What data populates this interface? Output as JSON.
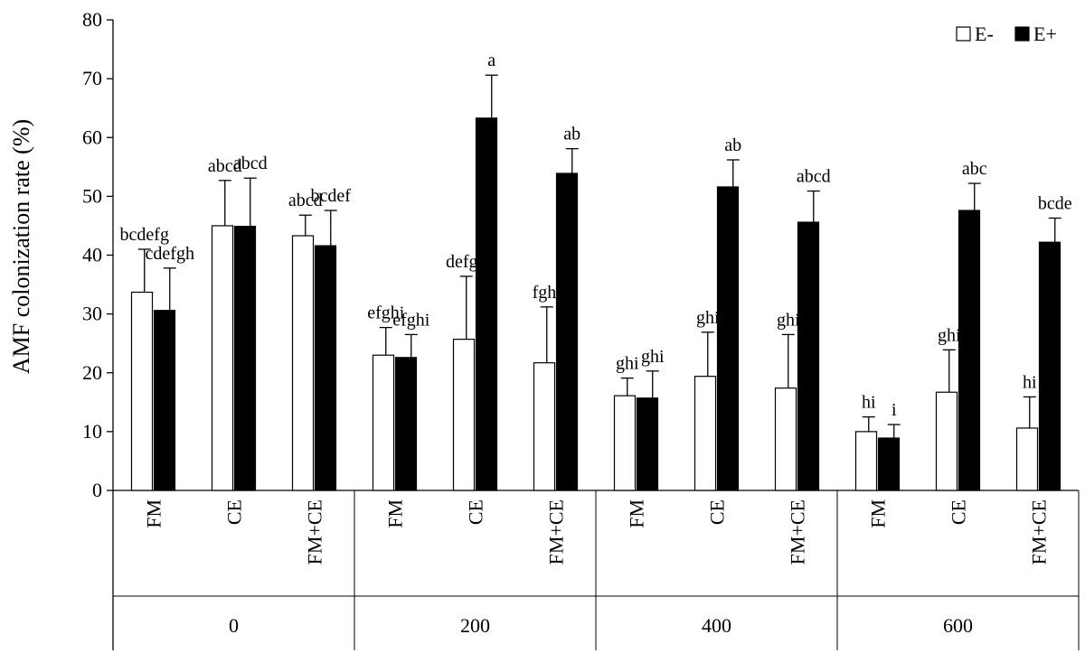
{
  "chart_data": {
    "type": "bar",
    "ylabel": "AMF colonization rate (%)",
    "xlabel": "",
    "ylim": [
      0,
      80
    ],
    "yticks": [
      0,
      10,
      20,
      30,
      40,
      50,
      60,
      70,
      80
    ],
    "grid": false,
    "legend_position": "top-right",
    "groups": [
      {
        "label": "0",
        "categories": [
          "FM",
          "CE",
          "FM+CE"
        ]
      },
      {
        "label": "200",
        "categories": [
          "FM",
          "CE",
          "FM+CE"
        ]
      },
      {
        "label": "400",
        "categories": [
          "FM",
          "CE",
          "FM+CE"
        ]
      },
      {
        "label": "600",
        "categories": [
          "FM",
          "CE",
          "FM+CE"
        ]
      }
    ],
    "series": [
      {
        "name": "E-",
        "color": "#ffffff",
        "values": [
          33.7,
          45.0,
          43.3,
          23.0,
          25.7,
          21.7,
          16.1,
          19.4,
          17.4,
          10.0,
          16.7,
          10.6
        ],
        "errors": [
          7.3,
          7.7,
          3.5,
          4.7,
          10.7,
          9.5,
          3.0,
          7.5,
          9.1,
          2.5,
          7.2,
          5.3
        ],
        "letters": [
          "bcdefg",
          "abcd",
          "abcd",
          "efghi",
          "defgh",
          "fghi",
          "ghi",
          "ghi",
          "ghi",
          "hi",
          "ghi",
          "hi"
        ]
      },
      {
        "name": "E+",
        "color": "#000000",
        "values": [
          30.6,
          44.9,
          41.6,
          22.6,
          63.3,
          53.9,
          15.7,
          51.6,
          45.6,
          8.9,
          47.6,
          42.2
        ],
        "errors": [
          7.2,
          8.2,
          6.0,
          3.9,
          7.3,
          4.2,
          4.6,
          4.6,
          5.3,
          2.3,
          4.6,
          4.1
        ],
        "letters": [
          "cdefgh",
          "abcd",
          "bcdef",
          "efghi",
          "a",
          "ab",
          "ghi",
          "ab",
          "abcd",
          "i",
          "abc",
          "bcde"
        ]
      }
    ]
  }
}
